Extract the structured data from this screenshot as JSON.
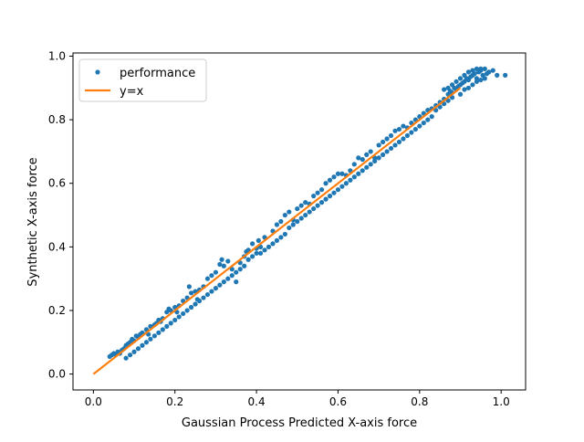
{
  "chart_data": {
    "type": "scatter",
    "title": "",
    "xlabel": "Gaussian Process Predicted X-axis force",
    "ylabel": "Synthetic X-axis force",
    "xlim": [
      -0.05,
      1.06
    ],
    "ylim": [
      -0.05,
      1.01
    ],
    "xticks": [
      0.0,
      0.2,
      0.4,
      0.6,
      0.8,
      1.0
    ],
    "yticks": [
      0.0,
      0.2,
      0.4,
      0.6,
      0.8,
      1.0
    ],
    "xtick_labels": [
      "0.0",
      "0.2",
      "0.4",
      "0.6",
      "0.8",
      "1.0"
    ],
    "ytick_labels": [
      "0.0",
      "0.2",
      "0.4",
      "0.6",
      "0.8",
      "1.0"
    ],
    "grid": false,
    "legend": {
      "placement": "top-left",
      "entries": [
        {
          "label": "performance",
          "marker": "dot",
          "color": "#1f77b4"
        },
        {
          "label": "y=x",
          "marker": "line",
          "color": "#ff7f0e"
        }
      ]
    },
    "series": [
      {
        "name": "performance",
        "kind": "scatter",
        "color": "#1f77b4",
        "points": [
          [
            0.04,
            0.055
          ],
          [
            0.045,
            0.06
          ],
          [
            0.05,
            0.065
          ],
          [
            0.055,
            0.06
          ],
          [
            0.06,
            0.07
          ],
          [
            0.065,
            0.065
          ],
          [
            0.07,
            0.075
          ],
          [
            0.075,
            0.08
          ],
          [
            0.08,
            0.09
          ],
          [
            0.085,
            0.095
          ],
          [
            0.09,
            0.1
          ],
          [
            0.095,
            0.11
          ],
          [
            0.1,
            0.105
          ],
          [
            0.105,
            0.12
          ],
          [
            0.11,
            0.115
          ],
          [
            0.115,
            0.125
          ],
          [
            0.12,
            0.13
          ],
          [
            0.13,
            0.14
          ],
          [
            0.135,
            0.125
          ],
          [
            0.14,
            0.15
          ],
          [
            0.15,
            0.155
          ],
          [
            0.155,
            0.16
          ],
          [
            0.16,
            0.17
          ],
          [
            0.165,
            0.165
          ],
          [
            0.17,
            0.175
          ],
          [
            0.18,
            0.195
          ],
          [
            0.185,
            0.205
          ],
          [
            0.19,
            0.2
          ],
          [
            0.2,
            0.21
          ],
          [
            0.205,
            0.195
          ],
          [
            0.21,
            0.215
          ],
          [
            0.22,
            0.23
          ],
          [
            0.23,
            0.24
          ],
          [
            0.235,
            0.275
          ],
          [
            0.24,
            0.255
          ],
          [
            0.25,
            0.26
          ],
          [
            0.255,
            0.235
          ],
          [
            0.26,
            0.265
          ],
          [
            0.27,
            0.275
          ],
          [
            0.28,
            0.3
          ],
          [
            0.29,
            0.31
          ],
          [
            0.3,
            0.32
          ],
          [
            0.31,
            0.345
          ],
          [
            0.315,
            0.36
          ],
          [
            0.32,
            0.34
          ],
          [
            0.33,
            0.355
          ],
          [
            0.34,
            0.33
          ],
          [
            0.35,
            0.29
          ],
          [
            0.36,
            0.35
          ],
          [
            0.37,
            0.37
          ],
          [
            0.375,
            0.385
          ],
          [
            0.38,
            0.39
          ],
          [
            0.39,
            0.41
          ],
          [
            0.4,
            0.395
          ],
          [
            0.405,
            0.42
          ],
          [
            0.41,
            0.38
          ],
          [
            0.42,
            0.43
          ],
          [
            0.44,
            0.45
          ],
          [
            0.45,
            0.47
          ],
          [
            0.46,
            0.48
          ],
          [
            0.47,
            0.5
          ],
          [
            0.48,
            0.51
          ],
          [
            0.49,
            0.485
          ],
          [
            0.5,
            0.52
          ],
          [
            0.51,
            0.53
          ],
          [
            0.52,
            0.54
          ],
          [
            0.53,
            0.535
          ],
          [
            0.54,
            0.56
          ],
          [
            0.55,
            0.57
          ],
          [
            0.56,
            0.58
          ],
          [
            0.57,
            0.6
          ],
          [
            0.58,
            0.61
          ],
          [
            0.59,
            0.62
          ],
          [
            0.6,
            0.63
          ],
          [
            0.61,
            0.63
          ],
          [
            0.62,
            0.625
          ],
          [
            0.63,
            0.64
          ],
          [
            0.64,
            0.66
          ],
          [
            0.65,
            0.68
          ],
          [
            0.66,
            0.675
          ],
          [
            0.67,
            0.69
          ],
          [
            0.68,
            0.7
          ],
          [
            0.69,
            0.68
          ],
          [
            0.7,
            0.72
          ],
          [
            0.71,
            0.73
          ],
          [
            0.72,
            0.74
          ],
          [
            0.73,
            0.75
          ],
          [
            0.74,
            0.765
          ],
          [
            0.75,
            0.77
          ],
          [
            0.76,
            0.78
          ],
          [
            0.77,
            0.775
          ],
          [
            0.78,
            0.79
          ],
          [
            0.79,
            0.8
          ],
          [
            0.8,
            0.81
          ],
          [
            0.81,
            0.82
          ],
          [
            0.82,
            0.83
          ],
          [
            0.83,
            0.835
          ],
          [
            0.84,
            0.845
          ],
          [
            0.85,
            0.855
          ],
          [
            0.86,
            0.865
          ],
          [
            0.87,
            0.88
          ],
          [
            0.875,
            0.89
          ],
          [
            0.88,
            0.885
          ],
          [
            0.885,
            0.9
          ],
          [
            0.89,
            0.895
          ],
          [
            0.895,
            0.905
          ],
          [
            0.9,
            0.91
          ],
          [
            0.905,
            0.915
          ],
          [
            0.91,
            0.92
          ],
          [
            0.915,
            0.93
          ],
          [
            0.92,
            0.925
          ],
          [
            0.925,
            0.935
          ],
          [
            0.93,
            0.94
          ],
          [
            0.935,
            0.945
          ],
          [
            0.94,
            0.93
          ],
          [
            0.945,
            0.95
          ],
          [
            0.95,
            0.955
          ],
          [
            0.955,
            0.94
          ],
          [
            0.96,
            0.96
          ],
          [
            0.965,
            0.945
          ],
          [
            0.97,
            0.95
          ],
          [
            0.98,
            0.955
          ],
          [
            0.99,
            0.94
          ],
          [
            1.01,
            0.94
          ],
          [
            0.86,
            0.895
          ],
          [
            0.87,
            0.9
          ],
          [
            0.88,
            0.91
          ],
          [
            0.89,
            0.92
          ],
          [
            0.9,
            0.93
          ],
          [
            0.91,
            0.94
          ],
          [
            0.92,
            0.95
          ],
          [
            0.93,
            0.955
          ],
          [
            0.94,
            0.96
          ],
          [
            0.95,
            0.96
          ],
          [
            0.9,
            0.88
          ],
          [
            0.91,
            0.895
          ],
          [
            0.92,
            0.9
          ],
          [
            0.93,
            0.91
          ],
          [
            0.94,
            0.92
          ],
          [
            0.95,
            0.925
          ],
          [
            0.96,
            0.93
          ],
          [
            0.88,
            0.87
          ],
          [
            0.87,
            0.86
          ],
          [
            0.86,
            0.85
          ],
          [
            0.85,
            0.84
          ],
          [
            0.84,
            0.83
          ],
          [
            0.83,
            0.81
          ],
          [
            0.82,
            0.8
          ],
          [
            0.81,
            0.79
          ],
          [
            0.8,
            0.78
          ],
          [
            0.79,
            0.77
          ],
          [
            0.78,
            0.76
          ],
          [
            0.77,
            0.75
          ],
          [
            0.76,
            0.74
          ],
          [
            0.75,
            0.73
          ],
          [
            0.74,
            0.72
          ],
          [
            0.73,
            0.71
          ],
          [
            0.72,
            0.7
          ],
          [
            0.71,
            0.69
          ],
          [
            0.7,
            0.68
          ],
          [
            0.69,
            0.67
          ],
          [
            0.68,
            0.66
          ],
          [
            0.67,
            0.65
          ],
          [
            0.66,
            0.64
          ],
          [
            0.65,
            0.63
          ],
          [
            0.64,
            0.62
          ],
          [
            0.63,
            0.61
          ],
          [
            0.62,
            0.6
          ],
          [
            0.61,
            0.59
          ],
          [
            0.6,
            0.58
          ],
          [
            0.59,
            0.57
          ],
          [
            0.58,
            0.56
          ],
          [
            0.57,
            0.55
          ],
          [
            0.56,
            0.54
          ],
          [
            0.55,
            0.53
          ],
          [
            0.54,
            0.52
          ],
          [
            0.53,
            0.51
          ],
          [
            0.52,
            0.5
          ],
          [
            0.51,
            0.49
          ],
          [
            0.5,
            0.48
          ],
          [
            0.49,
            0.47
          ],
          [
            0.48,
            0.46
          ],
          [
            0.47,
            0.44
          ],
          [
            0.46,
            0.43
          ],
          [
            0.45,
            0.42
          ],
          [
            0.44,
            0.41
          ],
          [
            0.43,
            0.4
          ],
          [
            0.42,
            0.39
          ],
          [
            0.41,
            0.4
          ],
          [
            0.4,
            0.38
          ],
          [
            0.39,
            0.37
          ],
          [
            0.38,
            0.36
          ],
          [
            0.37,
            0.34
          ],
          [
            0.36,
            0.33
          ],
          [
            0.35,
            0.32
          ],
          [
            0.34,
            0.31
          ],
          [
            0.33,
            0.3
          ],
          [
            0.32,
            0.29
          ],
          [
            0.31,
            0.28
          ],
          [
            0.3,
            0.27
          ],
          [
            0.29,
            0.26
          ],
          [
            0.28,
            0.25
          ],
          [
            0.27,
            0.24
          ],
          [
            0.26,
            0.23
          ],
          [
            0.25,
            0.22
          ],
          [
            0.24,
            0.21
          ],
          [
            0.23,
            0.2
          ],
          [
            0.22,
            0.19
          ],
          [
            0.21,
            0.18
          ],
          [
            0.2,
            0.17
          ],
          [
            0.19,
            0.16
          ],
          [
            0.18,
            0.15
          ],
          [
            0.17,
            0.14
          ],
          [
            0.16,
            0.13
          ],
          [
            0.15,
            0.12
          ],
          [
            0.14,
            0.11
          ],
          [
            0.13,
            0.1
          ],
          [
            0.12,
            0.09
          ],
          [
            0.11,
            0.08
          ],
          [
            0.1,
            0.07
          ],
          [
            0.09,
            0.06
          ],
          [
            0.08,
            0.05
          ]
        ]
      },
      {
        "name": "y=x",
        "kind": "line",
        "color": "#ff7f0e",
        "points": [
          [
            0.0,
            0.0
          ],
          [
            0.9,
            0.9
          ]
        ]
      }
    ]
  }
}
